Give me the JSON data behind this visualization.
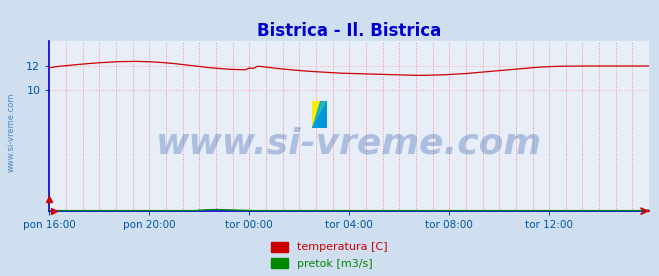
{
  "title": "Bistrica - Il. Bistrica",
  "title_color": "#0000cc",
  "title_fontsize": 12,
  "bg_color": "#d0dff0",
  "plot_bg_color": "#e8eef8",
  "grid_color_v": "#ff8888",
  "grid_color_h": "#ffaaaa",
  "xlabel_color": "#0055aa",
  "ylabel_color": "#0055aa",
  "axis_color": "#0000cc",
  "watermark_text": "www.si-vreme.com",
  "watermark_color": "#2255aa",
  "watermark_alpha": 0.3,
  "watermark_fontsize": 26,
  "sidebar_text": "www.si-vreme.com",
  "sidebar_color": "#2266aa",
  "ylim": [
    0,
    14
  ],
  "yticks": [
    10,
    12
  ],
  "num_points": 145,
  "xtick_labels": [
    "pon 16:00",
    "pon 20:00",
    "tor 00:00",
    "tor 04:00",
    "tor 08:00",
    "tor 12:00"
  ],
  "xtick_positions": [
    0,
    24,
    48,
    72,
    96,
    120
  ],
  "vgrid_positions": [
    0,
    4,
    8,
    12,
    16,
    20,
    24,
    28,
    32,
    36,
    40,
    44,
    48,
    52,
    56,
    60,
    64,
    68,
    72,
    76,
    80,
    84,
    88,
    92,
    96,
    100,
    104,
    108,
    112,
    116,
    120,
    124,
    128,
    132,
    136,
    140,
    144
  ],
  "temp_color": "#cc0000",
  "flow_color": "#008800",
  "legend_temp": "temperatura [C]",
  "legend_flow": "pretok [m3/s]",
  "temp_data": [
    11.82,
    11.88,
    11.93,
    11.97,
    12.0,
    12.03,
    12.07,
    12.1,
    12.13,
    12.16,
    12.19,
    12.21,
    12.24,
    12.26,
    12.28,
    12.3,
    12.32,
    12.33,
    12.34,
    12.34,
    12.35,
    12.35,
    12.34,
    12.33,
    12.32,
    12.3,
    12.28,
    12.26,
    12.23,
    12.2,
    12.17,
    12.13,
    12.09,
    12.05,
    12.01,
    11.97,
    11.93,
    11.89,
    11.85,
    11.82,
    11.79,
    11.76,
    11.73,
    11.71,
    11.69,
    11.68,
    11.67,
    11.66,
    11.8,
    11.78,
    11.95,
    11.92,
    11.88,
    11.84,
    11.8,
    11.76,
    11.72,
    11.69,
    11.66,
    11.63,
    11.6,
    11.57,
    11.55,
    11.52,
    11.5,
    11.48,
    11.46,
    11.44,
    11.42,
    11.4,
    11.38,
    11.37,
    11.36,
    11.35,
    11.34,
    11.33,
    11.32,
    11.31,
    11.3,
    11.29,
    11.28,
    11.27,
    11.26,
    11.25,
    11.24,
    11.23,
    11.22,
    11.21,
    11.2,
    11.2,
    11.2,
    11.21,
    11.22,
    11.23,
    11.24,
    11.25,
    11.27,
    11.29,
    11.31,
    11.33,
    11.35,
    11.38,
    11.41,
    11.44,
    11.47,
    11.5,
    11.53,
    11.56,
    11.59,
    11.62,
    11.65,
    11.68,
    11.71,
    11.74,
    11.77,
    11.8,
    11.83,
    11.86,
    11.88,
    11.9,
    11.92,
    11.93,
    11.94,
    11.95,
    11.96,
    11.96,
    11.96,
    11.97,
    11.97,
    11.97,
    11.97,
    11.97,
    11.97,
    11.97,
    11.97,
    11.97,
    11.97,
    11.97,
    11.97,
    11.97,
    11.97,
    11.97,
    11.97,
    11.97,
    11.97
  ],
  "flow_data": [
    0.05,
    0.05,
    0.05,
    0.05,
    0.05,
    0.05,
    0.05,
    0.05,
    0.05,
    0.05,
    0.05,
    0.05,
    0.05,
    0.05,
    0.05,
    0.05,
    0.05,
    0.05,
    0.05,
    0.05,
    0.05,
    0.05,
    0.05,
    0.05,
    0.05,
    0.05,
    0.05,
    0.05,
    0.05,
    0.05,
    0.05,
    0.05,
    0.05,
    0.05,
    0.05,
    0.05,
    0.08,
    0.1,
    0.12,
    0.13,
    0.14,
    0.13,
    0.12,
    0.11,
    0.1,
    0.09,
    0.08,
    0.07,
    0.06,
    0.05,
    0.05,
    0.05,
    0.05,
    0.05,
    0.05,
    0.05,
    0.05,
    0.05,
    0.05,
    0.05,
    0.05,
    0.05,
    0.05,
    0.05,
    0.05,
    0.05,
    0.05,
    0.05,
    0.05,
    0.05,
    0.05,
    0.05,
    0.05,
    0.05,
    0.05,
    0.05,
    0.05,
    0.05,
    0.05,
    0.05,
    0.05,
    0.05,
    0.05,
    0.05,
    0.05,
    0.05,
    0.05,
    0.05,
    0.05,
    0.05,
    0.05,
    0.05,
    0.05,
    0.05,
    0.05,
    0.05,
    0.05,
    0.05,
    0.05,
    0.05,
    0.05,
    0.05,
    0.05,
    0.05,
    0.05,
    0.05,
    0.05,
    0.05,
    0.05,
    0.05,
    0.05,
    0.05,
    0.05,
    0.05,
    0.05,
    0.05,
    0.05,
    0.05,
    0.05,
    0.05,
    0.05,
    0.05,
    0.05,
    0.05,
    0.05,
    0.05,
    0.05,
    0.05,
    0.05,
    0.05,
    0.05,
    0.05,
    0.05,
    0.05,
    0.05,
    0.05,
    0.05,
    0.05,
    0.05,
    0.05,
    0.05,
    0.05,
    0.05,
    0.08,
    0.1
  ]
}
